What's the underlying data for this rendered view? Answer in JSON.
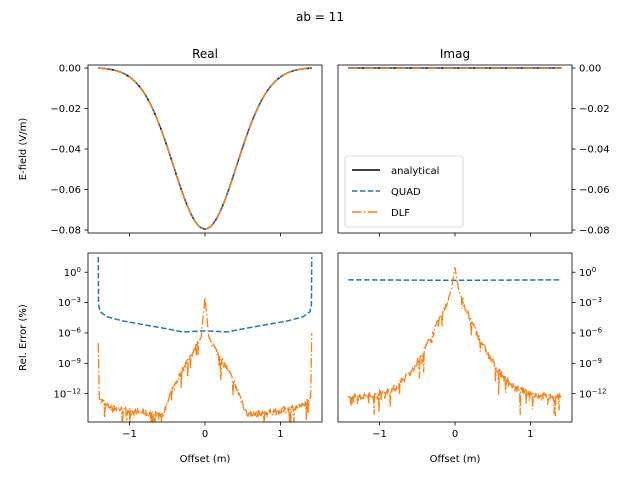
{
  "chart_data": [
    {
      "id": "real-field",
      "type": "line",
      "title": "Real",
      "xlabel": "",
      "ylabel": "E-field (V/m)",
      "xlim": [
        -1.55,
        1.55
      ],
      "ylim": [
        -0.0815,
        0.0015
      ],
      "yscale": "linear",
      "xticks": [
        -1,
        0,
        1
      ],
      "yticks": [
        0.0,
        -0.02,
        -0.04,
        -0.06,
        -0.08
      ],
      "ytick_labels": [
        "0.00",
        "−0.02",
        "−0.04",
        "−0.06",
        "−0.08"
      ],
      "yaxis_side": "left",
      "x_range": [
        -1.414,
        1.414
      ],
      "curve": "gaussian-like trough",
      "curve_params": {
        "min_value": -0.0795,
        "min_at": 0.0,
        "end_value": 0.0
      },
      "series": [
        {
          "name": "analytical",
          "style": "solid",
          "color": "#000000"
        },
        {
          "name": "QUAD",
          "style": "dashed",
          "color": "#1f77b4"
        },
        {
          "name": "DLF",
          "style": "dashdot",
          "color": "#ff7f0e"
        }
      ]
    },
    {
      "id": "imag-field",
      "type": "line",
      "title": "Imag",
      "xlabel": "",
      "ylabel": "",
      "xlim": [
        -1.55,
        1.55
      ],
      "ylim": [
        -0.0815,
        0.0015
      ],
      "yscale": "linear",
      "xticks": [
        -1,
        0,
        1
      ],
      "yticks": [
        0.0,
        -0.02,
        -0.04,
        -0.06,
        -0.08
      ],
      "ytick_labels": [
        "0.00",
        "−0.02",
        "−0.04",
        "−0.06",
        "−0.08"
      ],
      "yaxis_side": "right",
      "x_range": [
        -1.414,
        1.414
      ],
      "curve": "constant",
      "curve_params": {
        "value": 0.0
      },
      "legend": {
        "placement": "lower-left",
        "entries": [
          {
            "label": "analytical",
            "style": "solid",
            "color": "#000000"
          },
          {
            "label": "QUAD",
            "style": "dashed",
            "color": "#1f77b4"
          },
          {
            "label": "DLF",
            "style": "dashdot",
            "color": "#ff7f0e"
          }
        ]
      },
      "series": [
        {
          "name": "analytical",
          "style": "solid",
          "color": "#000000"
        },
        {
          "name": "QUAD",
          "style": "dashed",
          "color": "#1f77b4"
        },
        {
          "name": "DLF",
          "style": "dashdot",
          "color": "#ff7f0e"
        }
      ]
    },
    {
      "id": "real-error",
      "type": "line",
      "title": "",
      "xlabel": "Offset (m)",
      "ylabel": "Rel. Error (%)",
      "xlim": [
        -1.55,
        1.55
      ],
      "ylim_log10": [
        -14.8,
        1.9
      ],
      "yscale": "log",
      "xticks": [
        -1,
        0,
        1
      ],
      "xtick_labels": [
        "−1",
        "0",
        "1"
      ],
      "yticks_log10": [
        0,
        -3,
        -6,
        -9,
        -12
      ],
      "yaxis_side": "left",
      "series": [
        {
          "name": "QUAD",
          "style": "dashed",
          "color": "#1f77b4",
          "x": [
            -1.414,
            -1.41,
            -1.39,
            -1.3,
            -1.1,
            -0.8,
            -0.5,
            -0.3,
            0.0,
            0.3,
            0.5,
            0.8,
            1.1,
            1.3,
            1.39,
            1.41,
            1.414
          ],
          "log10_y": [
            1.5,
            -3.2,
            -3.9,
            -4.4,
            -4.8,
            -5.2,
            -5.6,
            -5.9,
            -5.8,
            -5.9,
            -5.6,
            -5.2,
            -4.8,
            -4.4,
            -3.9,
            -3.2,
            1.5
          ]
        },
        {
          "name": "DLF",
          "style": "dashdot",
          "color": "#ff7f0e",
          "x": [
            -1.414,
            -1.4,
            -1.3,
            -1.0,
            -0.7,
            -0.55,
            -0.45,
            -0.3,
            -0.15,
            -0.05,
            0.0,
            0.05,
            0.15,
            0.3,
            0.45,
            0.55,
            0.7,
            1.0,
            1.3,
            1.4,
            1.414
          ],
          "log10_y": [
            -7.0,
            -12.5,
            -13.2,
            -13.7,
            -14.0,
            -14.0,
            -12.0,
            -9.6,
            -7.8,
            -6.4,
            -2.5,
            -6.4,
            -7.8,
            -9.6,
            -12.0,
            -14.0,
            -14.0,
            -13.7,
            -13.2,
            -12.3,
            -6.0
          ],
          "noisy": true
        }
      ]
    },
    {
      "id": "imag-error",
      "type": "line",
      "title": "",
      "xlabel": "Offset (m)",
      "ylabel": "",
      "xlim": [
        -1.55,
        1.55
      ],
      "ylim_log10": [
        -14.8,
        1.9
      ],
      "yscale": "log",
      "xticks": [
        -1,
        0,
        1
      ],
      "xtick_labels": [
        "−1",
        "0",
        "1"
      ],
      "yticks_log10": [
        0,
        -3,
        -6,
        -9,
        -12
      ],
      "yaxis_side": "right",
      "series": [
        {
          "name": "QUAD",
          "style": "dashed",
          "color": "#1f77b4",
          "x": [
            -1.414,
            0.0,
            1.414
          ],
          "log10_y": [
            -0.75,
            -0.8,
            -0.75
          ]
        },
        {
          "name": "DLF",
          "style": "dashdot",
          "color": "#ff7f0e",
          "x": [
            -1.414,
            -1.2,
            -1.0,
            -0.8,
            -0.6,
            -0.45,
            -0.3,
            -0.15,
            -0.05,
            0.0,
            0.05,
            0.15,
            0.3,
            0.45,
            0.6,
            0.8,
            1.0,
            1.2,
            1.414
          ],
          "log10_y": [
            -12.3,
            -12.3,
            -12.0,
            -11.5,
            -10.0,
            -8.3,
            -6.2,
            -3.8,
            -1.8,
            0.5,
            -1.8,
            -3.8,
            -6.2,
            -8.3,
            -10.0,
            -11.5,
            -12.0,
            -12.3,
            -12.3
          ],
          "noisy": true
        }
      ]
    }
  ],
  "suptitle": "ab = 11"
}
